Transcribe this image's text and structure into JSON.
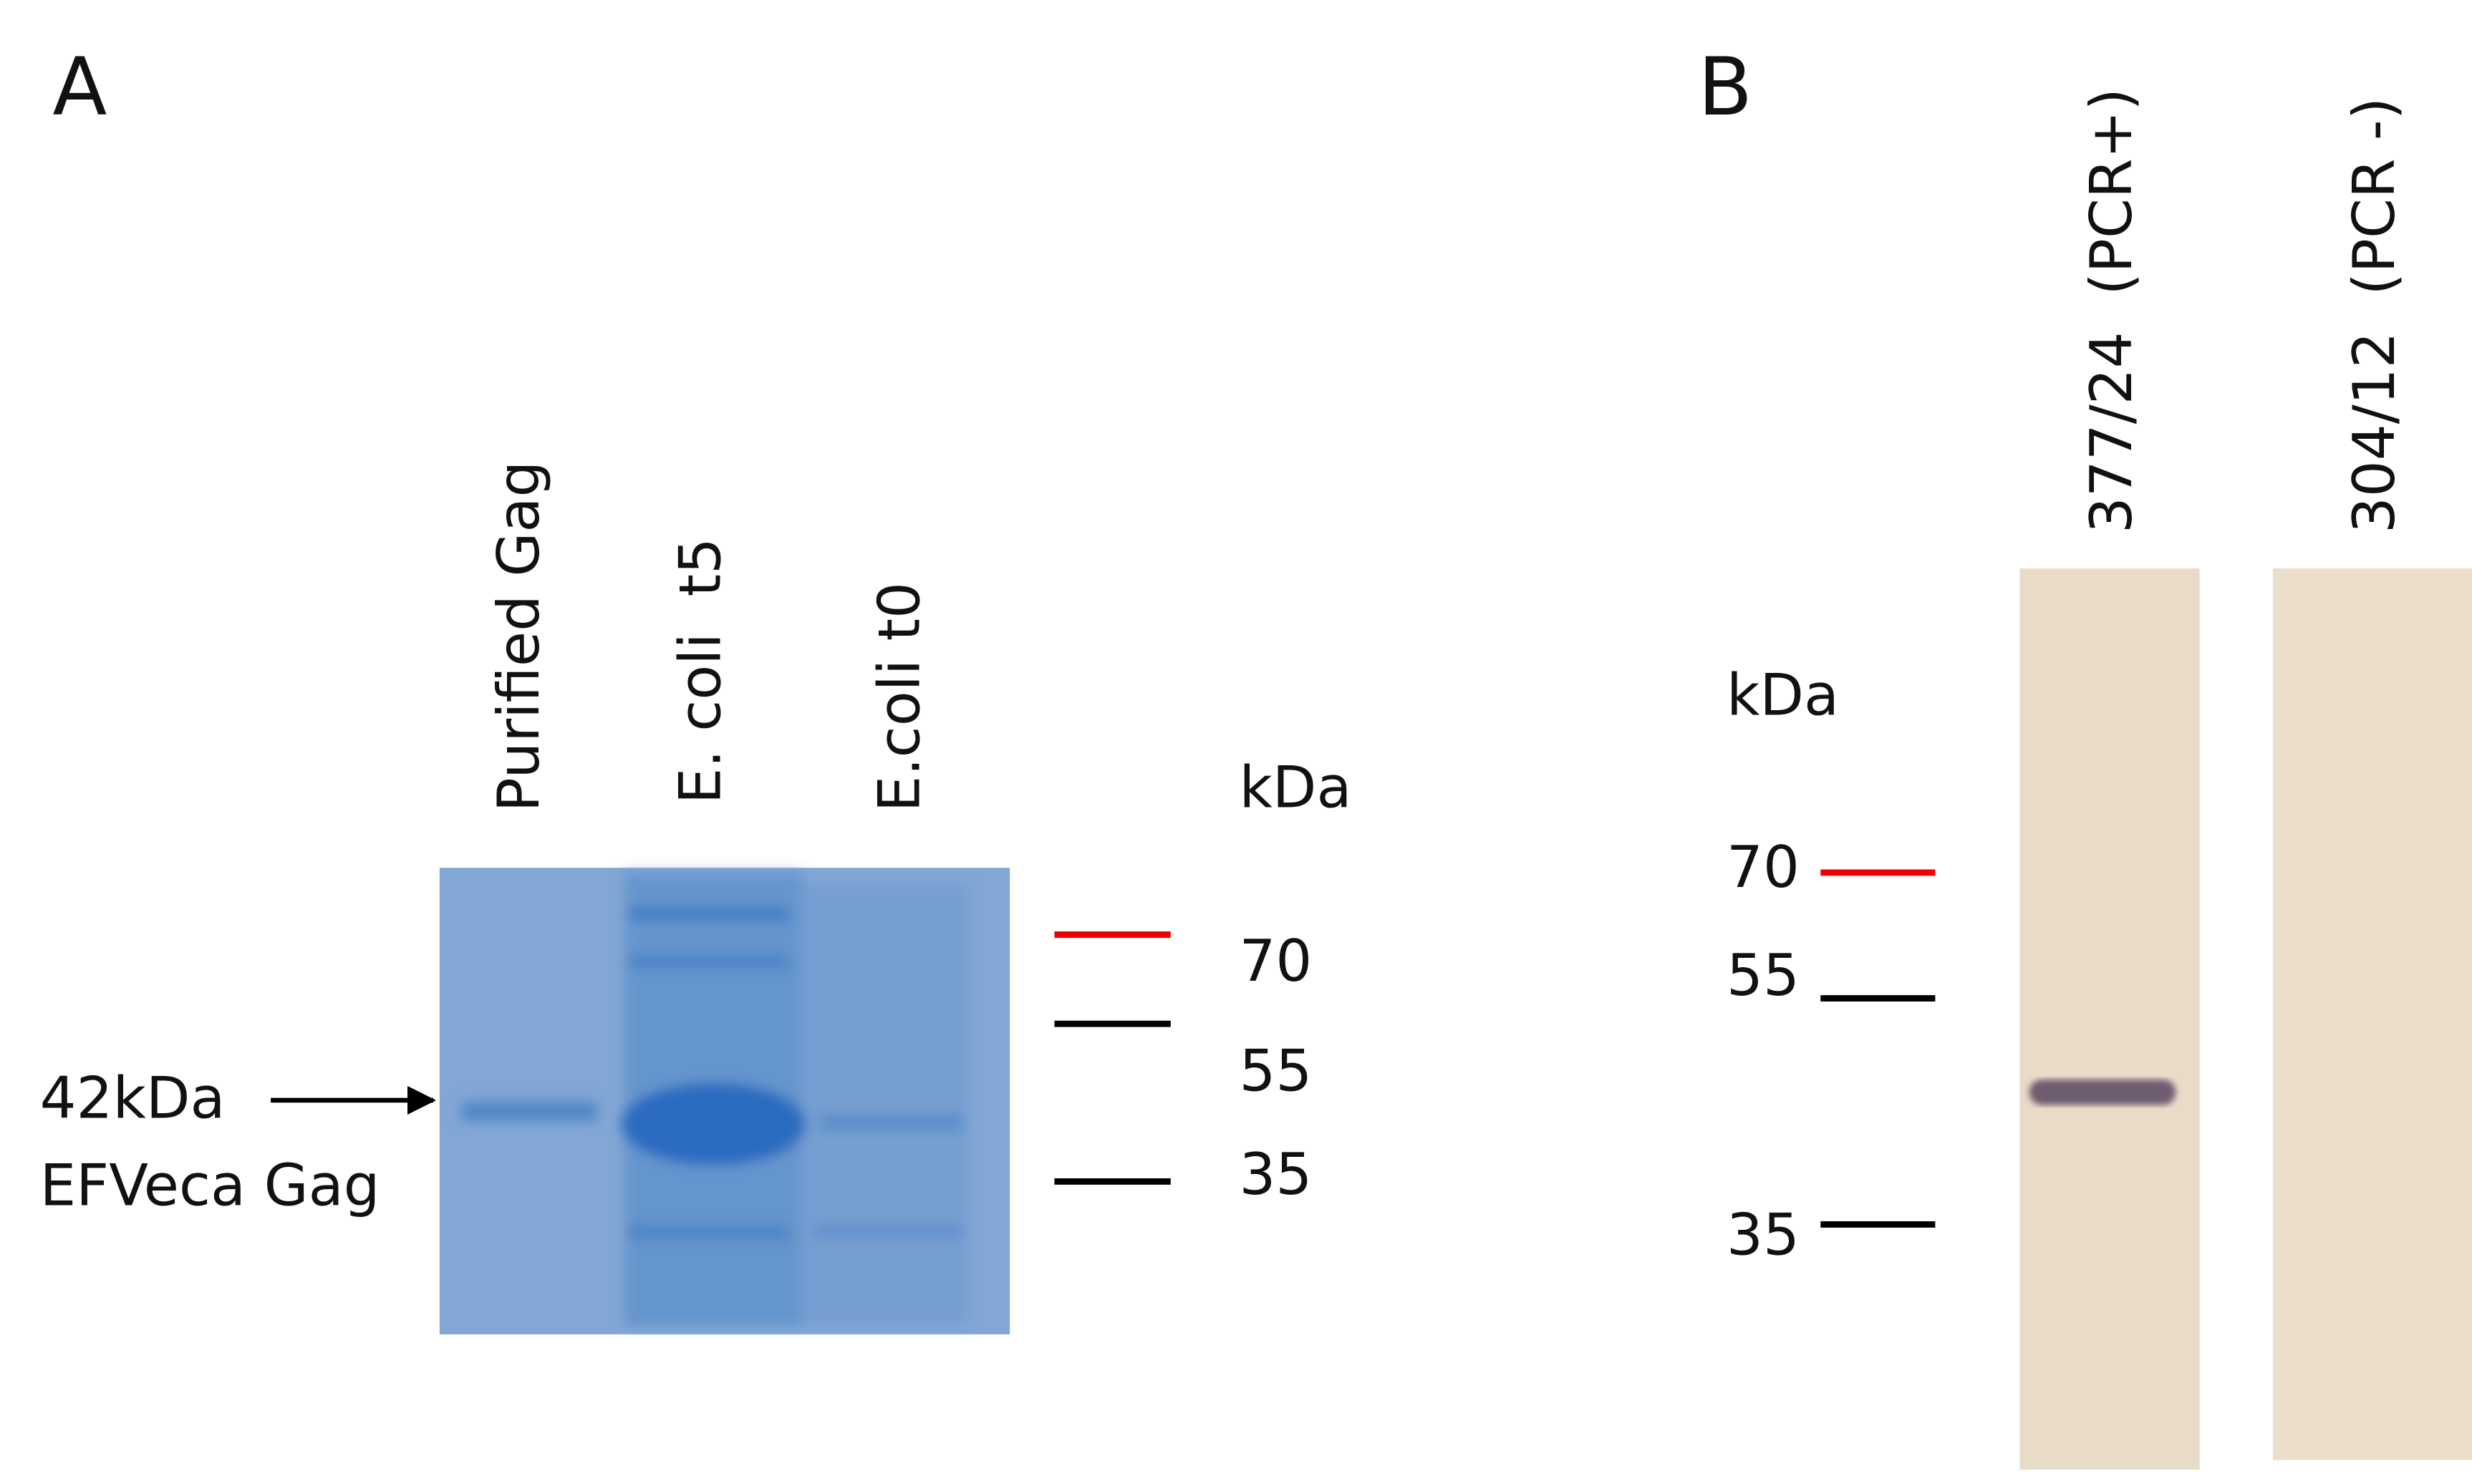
{
  "panel_a": {
    "label": "A",
    "lanes": [
      "Purified Gag",
      "E. coli  t5",
      "E.coli t0"
    ],
    "unit": "kDa",
    "markers": [
      "70",
      "55",
      "35"
    ],
    "annotation": [
      "42kDa",
      "EFVeca Gag"
    ]
  },
  "panel_b": {
    "label": "B",
    "lanes": [
      "377/24  (PCR+)",
      "304/12  (PCR -)"
    ],
    "unit": "kDa",
    "markers": [
      "70",
      "55",
      "35"
    ]
  }
}
